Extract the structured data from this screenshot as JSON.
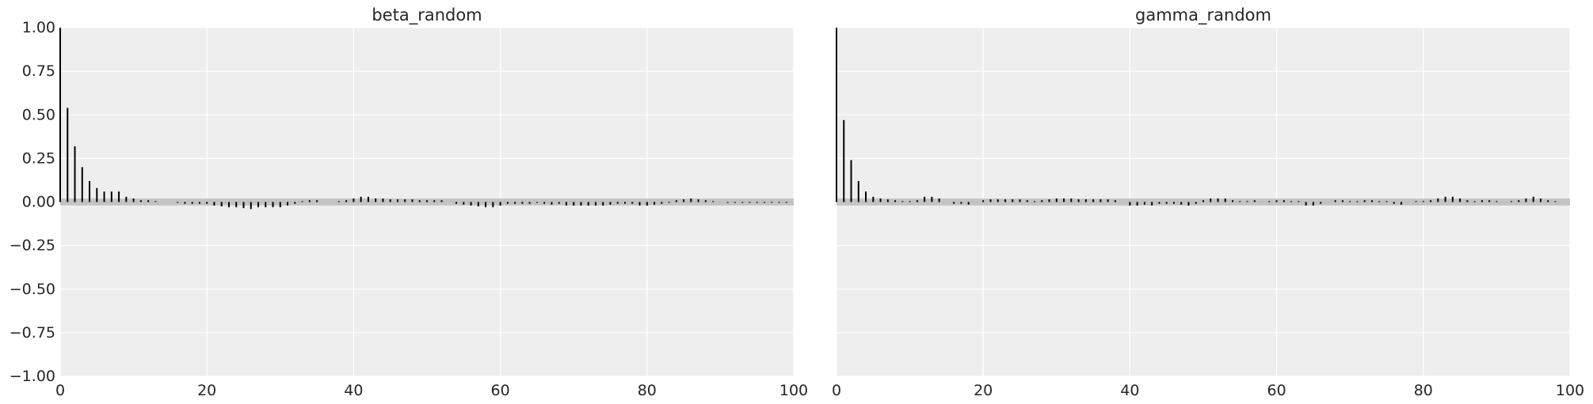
{
  "chart_data": [
    {
      "type": "bar",
      "title": "beta_random",
      "xlabel": "",
      "ylabel": "",
      "xlim": [
        0,
        100
      ],
      "ylim": [
        -1.0,
        1.0
      ],
      "xticks": [
        "0",
        "20",
        "40",
        "60",
        "80",
        "100"
      ],
      "yticks": [
        "−1.00",
        "−0.75",
        "−0.50",
        "−0.25",
        "0.00",
        "0.25",
        "0.50",
        "0.75",
        "1.00"
      ],
      "grid": true,
      "confidence_band": [
        -0.02,
        0.02
      ],
      "lags": [
        0,
        1,
        2,
        3,
        4,
        5,
        6,
        7,
        8,
        9,
        10,
        11,
        12,
        13,
        14,
        15,
        16,
        17,
        18,
        19,
        20,
        21,
        22,
        23,
        24,
        25,
        26,
        27,
        28,
        29,
        30,
        31,
        32,
        33,
        34,
        35,
        36,
        37,
        38,
        39,
        40,
        41,
        42,
        43,
        44,
        45,
        46,
        47,
        48,
        49,
        50,
        51,
        52,
        53,
        54,
        55,
        56,
        57,
        58,
        59,
        60,
        61,
        62,
        63,
        64,
        65,
        66,
        67,
        68,
        69,
        70,
        71,
        72,
        73,
        74,
        75,
        76,
        77,
        78,
        79,
        80,
        81,
        82,
        83,
        84,
        85,
        86,
        87,
        88,
        89,
        90,
        91,
        92,
        93,
        94,
        95,
        96,
        97,
        98,
        99
      ],
      "values": [
        1.0,
        0.54,
        0.32,
        0.2,
        0.12,
        0.08,
        0.06,
        0.06,
        0.06,
        0.03,
        0.02,
        0.01,
        0.01,
        0.005,
        0.0,
        0.0,
        -0.005,
        -0.01,
        -0.01,
        -0.01,
        -0.01,
        -0.02,
        -0.025,
        -0.03,
        -0.03,
        -0.035,
        -0.04,
        -0.03,
        -0.03,
        -0.03,
        -0.03,
        -0.02,
        -0.01,
        0.005,
        0.01,
        0.01,
        0.0,
        0.0,
        0.005,
        0.01,
        0.02,
        0.03,
        0.03,
        0.02,
        0.02,
        0.015,
        0.015,
        0.015,
        0.015,
        0.01,
        0.01,
        0.01,
        0.01,
        0.0,
        -0.01,
        -0.015,
        -0.02,
        -0.025,
        -0.03,
        -0.03,
        -0.02,
        -0.01,
        -0.01,
        -0.01,
        -0.01,
        -0.005,
        -0.01,
        -0.015,
        -0.01,
        -0.02,
        -0.02,
        -0.02,
        -0.02,
        -0.02,
        -0.02,
        -0.015,
        -0.01,
        -0.01,
        -0.01,
        -0.02,
        -0.02,
        -0.015,
        -0.01,
        -0.005,
        0.01,
        0.015,
        0.02,
        0.015,
        0.01,
        0.005,
        0.0,
        -0.005,
        -0.005,
        -0.005,
        -0.005,
        -0.005,
        -0.005,
        -0.005,
        -0.005,
        -0.005
      ]
    },
    {
      "type": "bar",
      "title": "gamma_random",
      "xlabel": "",
      "ylabel": "",
      "xlim": [
        0,
        100
      ],
      "ylim": [
        -1.0,
        1.0
      ],
      "xticks": [
        "0",
        "20",
        "40",
        "60",
        "80",
        "100"
      ],
      "grid": true,
      "confidence_band": [
        -0.02,
        0.02
      ],
      "lags": [
        0,
        1,
        2,
        3,
        4,
        5,
        6,
        7,
        8,
        9,
        10,
        11,
        12,
        13,
        14,
        15,
        16,
        17,
        18,
        19,
        20,
        21,
        22,
        23,
        24,
        25,
        26,
        27,
        28,
        29,
        30,
        31,
        32,
        33,
        34,
        35,
        36,
        37,
        38,
        39,
        40,
        41,
        42,
        43,
        44,
        45,
        46,
        47,
        48,
        49,
        50,
        51,
        52,
        53,
        54,
        55,
        56,
        57,
        58,
        59,
        60,
        61,
        62,
        63,
        64,
        65,
        66,
        67,
        68,
        69,
        70,
        71,
        72,
        73,
        74,
        75,
        76,
        77,
        78,
        79,
        80,
        81,
        82,
        83,
        84,
        85,
        86,
        87,
        88,
        89,
        90,
        91,
        92,
        93,
        94,
        95,
        96,
        97,
        98,
        99
      ],
      "values": [
        1.0,
        0.47,
        0.24,
        0.12,
        0.06,
        0.03,
        0.02,
        0.015,
        0.01,
        0.005,
        0.005,
        0.01,
        0.03,
        0.03,
        0.02,
        0.0,
        -0.01,
        -0.01,
        -0.015,
        0.0,
        0.01,
        0.015,
        0.015,
        0.015,
        0.015,
        0.015,
        0.01,
        0.005,
        0.01,
        0.015,
        0.02,
        0.02,
        0.02,
        0.015,
        0.015,
        0.015,
        0.015,
        0.015,
        0.01,
        0.0,
        -0.02,
        -0.02,
        -0.015,
        -0.02,
        -0.01,
        -0.01,
        -0.01,
        -0.015,
        -0.02,
        -0.01,
        0.01,
        0.02,
        0.02,
        0.02,
        0.01,
        0.005,
        0.005,
        0.01,
        0.0,
        0.005,
        0.01,
        0.01,
        0.005,
        0.005,
        -0.02,
        -0.02,
        -0.01,
        0.0,
        0.01,
        0.01,
        0.005,
        0.005,
        0.01,
        0.01,
        0.005,
        0.005,
        -0.01,
        -0.015,
        0.0,
        0.005,
        0.005,
        0.01,
        0.02,
        0.03,
        0.03,
        0.02,
        0.01,
        0.005,
        0.01,
        0.01,
        0.005,
        0.0,
        0.005,
        0.01,
        0.02,
        0.03,
        0.02,
        0.01,
        0.005,
        0.0
      ]
    }
  ]
}
